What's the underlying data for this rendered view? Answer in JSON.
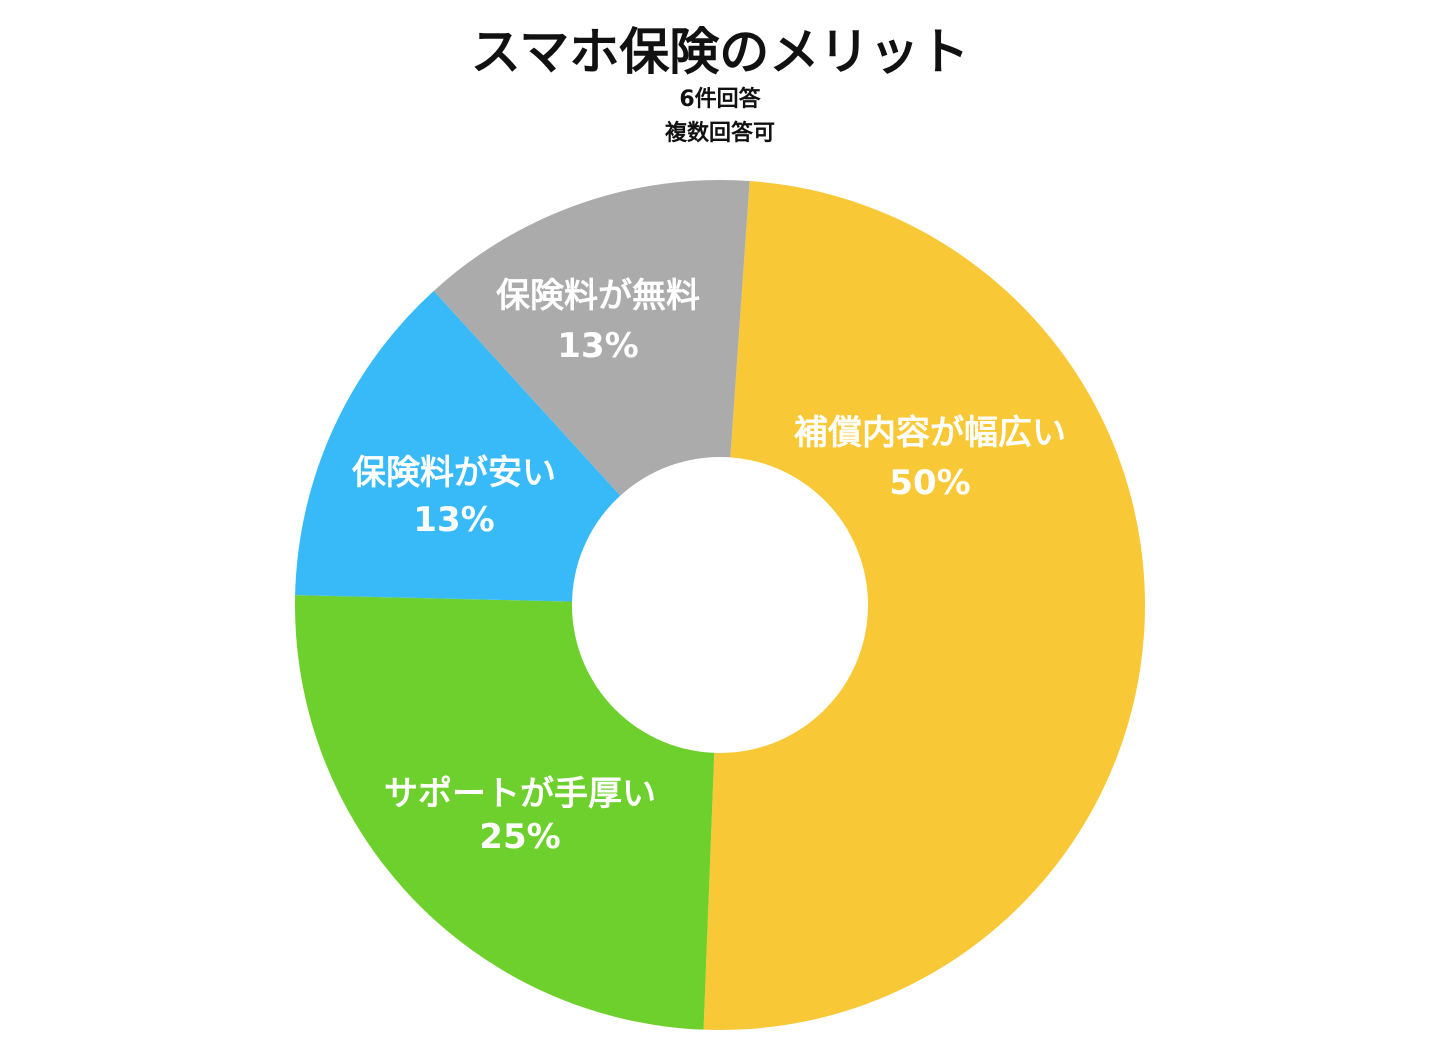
{
  "chart_data": {
    "type": "pie",
    "title": "スマホ保険のメリット",
    "subtitle": [
      "6件回答",
      "複数回答可"
    ],
    "donut": true,
    "slices": [
      {
        "label": "補償内容が幅広い",
        "value": 50,
        "value_label": "50%",
        "color": "#F9C837"
      },
      {
        "label": "サポートが手厚い",
        "value": 25,
        "value_label": "25%",
        "color": "#6DD02C"
      },
      {
        "label": "保険料が安い",
        "value": 13,
        "value_label": "13%",
        "color": "#38BAF8"
      },
      {
        "label": "保険料が無料",
        "value": 13,
        "value_label": "13%",
        "color": "#ABABAB"
      }
    ]
  }
}
